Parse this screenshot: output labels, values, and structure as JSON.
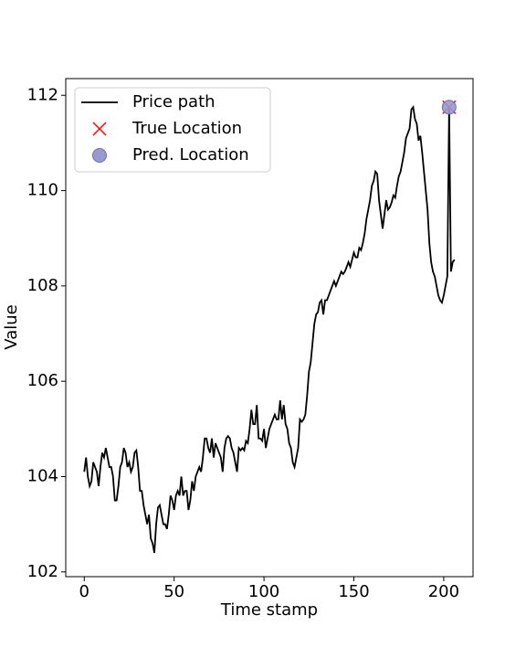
{
  "chart_data": {
    "type": "line",
    "xlabel": "Time stamp",
    "ylabel": "Value",
    "xlim": [
      -10.3,
      216.3
    ],
    "xticks": [
      0,
      50,
      100,
      150,
      200
    ],
    "ylim": [
      101.9,
      112.35
    ],
    "yticks": [
      102,
      104,
      106,
      108,
      110,
      112
    ],
    "legend": "upper left",
    "series": [
      {
        "name": "Price path",
        "type": "line",
        "color": "#000000",
        "values": [
          104.1,
          104.4,
          104.0,
          103.8,
          103.9,
          104.3,
          104.2,
          104.1,
          103.8,
          104.2,
          104.5,
          104.4,
          104.6,
          104.4,
          104.2,
          104.2,
          104.0,
          103.5,
          103.5,
          103.8,
          104.2,
          104.3,
          104.6,
          104.5,
          104.2,
          104.3,
          104.1,
          104.2,
          104.5,
          104.55,
          104.2,
          103.7,
          103.7,
          103.4,
          103.2,
          103.0,
          103.2,
          102.7,
          102.6,
          102.4,
          103.0,
          103.35,
          103.4,
          103.2,
          103.0,
          103.0,
          102.9,
          103.2,
          103.6,
          103.5,
          103.3,
          103.6,
          103.7,
          103.6,
          104.0,
          103.6,
          103.7,
          103.7,
          103.3,
          103.5,
          103.9,
          103.7,
          104.0,
          104.1,
          104.2,
          104.1,
          104.4,
          104.8,
          104.8,
          104.6,
          104.5,
          104.8,
          104.4,
          104.7,
          104.6,
          104.5,
          104.4,
          104.1,
          104.6,
          104.8,
          104.85,
          104.8,
          104.6,
          104.5,
          104.3,
          104.1,
          104.6,
          104.55,
          104.6,
          104.55,
          104.75,
          104.7,
          105.0,
          105.4,
          105.1,
          105.1,
          105.5,
          104.8,
          104.8,
          104.75,
          105.0,
          104.6,
          104.8,
          105.0,
          105.1,
          105.2,
          105.3,
          105.2,
          105.2,
          105.6,
          105.2,
          105.5,
          105.1,
          105.0,
          104.7,
          104.6,
          104.3,
          104.2,
          104.4,
          104.6,
          105.2,
          105.15,
          105.2,
          105.3,
          105.7,
          106.2,
          106.4,
          106.8,
          107.2,
          107.4,
          107.45,
          107.65,
          107.7,
          107.4,
          107.7,
          107.7,
          107.8,
          107.9,
          108.0,
          108.1,
          108.0,
          108.1,
          108.2,
          108.3,
          108.25,
          108.3,
          108.4,
          108.5,
          108.4,
          108.55,
          108.7,
          108.6,
          108.6,
          108.8,
          108.75,
          108.9,
          109.1,
          109.4,
          109.6,
          109.8,
          110.1,
          110.2,
          110.4,
          110.35,
          109.8,
          109.5,
          109.2,
          109.5,
          109.8,
          109.6,
          109.65,
          109.75,
          109.9,
          109.85,
          110.1,
          110.3,
          110.4,
          110.6,
          110.8,
          111.1,
          111.2,
          111.3,
          111.7,
          111.75,
          111.5,
          111.4,
          111.05,
          111.15,
          110.8,
          110.4,
          110.0,
          109.6,
          108.9,
          108.5,
          108.3,
          108.2,
          108.0,
          107.8,
          107.7,
          107.65,
          107.8,
          108.0,
          108.2,
          111.75,
          108.3,
          108.5,
          108.55
        ]
      },
      {
        "name": "True Location",
        "type": "scatter",
        "marker": "x",
        "color": "#ff0000",
        "x": [
          203
        ],
        "values": [
          111.75
        ]
      },
      {
        "name": "Pred. Location",
        "type": "scatter",
        "marker": "o",
        "color": "#9999cc",
        "x": [
          203
        ],
        "values": [
          111.75
        ]
      }
    ]
  }
}
